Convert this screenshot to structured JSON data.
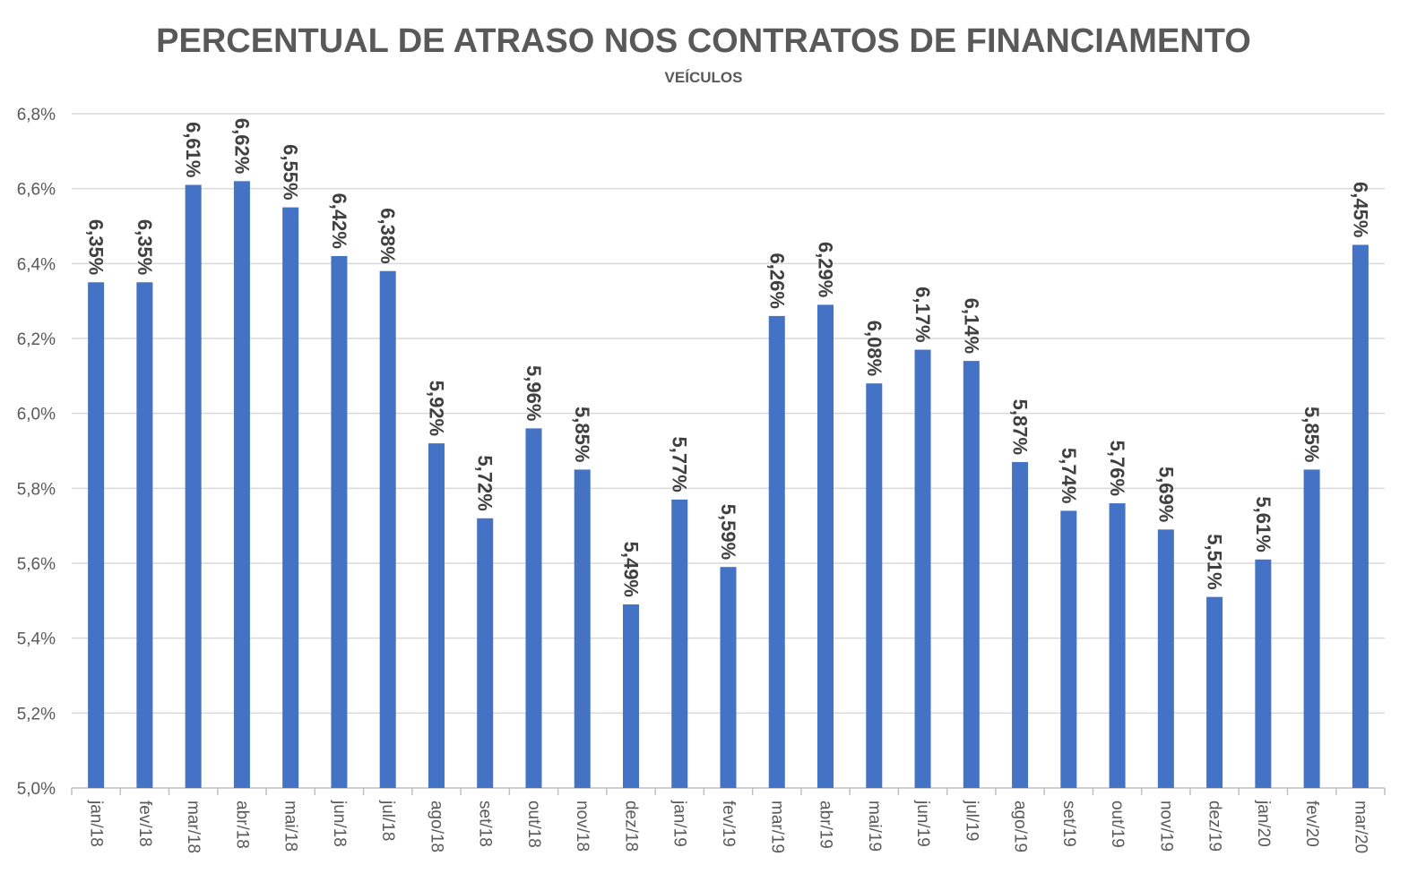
{
  "chart_data": {
    "type": "bar",
    "title": "PERCENTUAL DE ATRASO NOS CONTRATOS DE FINANCIAMENTO",
    "subtitle": "VEÍCULOS",
    "xlabel": "",
    "ylabel": "",
    "ylim": [
      5.0,
      6.8
    ],
    "yticks": [
      5.0,
      5.2,
      5.4,
      5.6,
      5.8,
      6.0,
      6.2,
      6.4,
      6.6,
      6.8
    ],
    "ytick_labels": [
      "5,0%",
      "5,2%",
      "5,4%",
      "5,6%",
      "5,8%",
      "6,0%",
      "6,2%",
      "6,4%",
      "6,6%",
      "6,8%"
    ],
    "grid": true,
    "bar_color": "#4472C4",
    "categories": [
      "jan/18",
      "fev/18",
      "mar/18",
      "abr/18",
      "mai/18",
      "jun/18",
      "jul/18",
      "ago/18",
      "set/18",
      "out/18",
      "nov/18",
      "dez/18",
      "jan/19",
      "fev/19",
      "mar/19",
      "abr/19",
      "mai/19",
      "jun/19",
      "jul/19",
      "ago/19",
      "set/19",
      "out/19",
      "nov/19",
      "dez/19",
      "jan/20",
      "fev/20",
      "mar/20"
    ],
    "values": [
      6.35,
      6.35,
      6.61,
      6.62,
      6.55,
      6.42,
      6.38,
      5.92,
      5.72,
      5.96,
      5.85,
      5.49,
      5.77,
      5.59,
      6.26,
      6.29,
      6.08,
      6.17,
      6.14,
      5.87,
      5.74,
      5.76,
      5.69,
      5.51,
      5.61,
      5.85,
      6.45
    ],
    "data_labels": [
      "6,35%",
      "6,35%",
      "6,61%",
      "6,62%",
      "6,55%",
      "6,42%",
      "6,38%",
      "5,92%",
      "5,72%",
      "5,96%",
      "5,85%",
      "5,49%",
      "5,77%",
      "5,59%",
      "6,26%",
      "6,29%",
      "6,08%",
      "6,17%",
      "6,14%",
      "5,87%",
      "5,74%",
      "5,76%",
      "5,69%",
      "5,51%",
      "5,61%",
      "5,85%",
      "6,45%"
    ]
  }
}
